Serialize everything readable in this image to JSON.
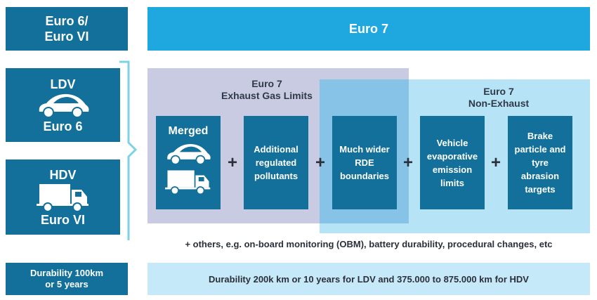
{
  "top": {
    "left_title": "Euro 6/\nEuro VI",
    "right_title": "Euro 7"
  },
  "ldv": {
    "label": "LDV",
    "standard": "Euro 6",
    "icon": "car-icon"
  },
  "hdv": {
    "label": "HDV",
    "standard": "Euro VI",
    "icon": "truck-icon"
  },
  "exhaust_panel": {
    "title_line1": "Euro 7",
    "title_line2": "Exhaust Gas Limits"
  },
  "non_exhaust_panel": {
    "title_line1": "Euro 7",
    "title_line2": "Non-Exhaust"
  },
  "boxes": [
    {
      "label": "Merged"
    },
    {
      "label": "Additional regulated pollutants"
    },
    {
      "label": "Much wider RDE boundaries"
    },
    {
      "label": "Vehicle evaporative emission limits"
    },
    {
      "label": "Brake particle and tyre abrasion targets"
    }
  ],
  "plus": "+",
  "others_note": "+ others, e.g. on-board monitoring (OBM), battery durability, procedural changes, etc",
  "durability": {
    "left": "Durability 100km\nor 5 years",
    "right": "Durability 200k km or 10 years for LDV and 375.000 to 875.000 km for HDV"
  },
  "colors": {
    "dark": "#12709a",
    "euro7": "#1fa8e0",
    "exhaust": "#c9cbe2",
    "non_exhaust": "#b6e3f6",
    "overlap": "#86c3e6",
    "bracket": "#7fd2e6"
  }
}
